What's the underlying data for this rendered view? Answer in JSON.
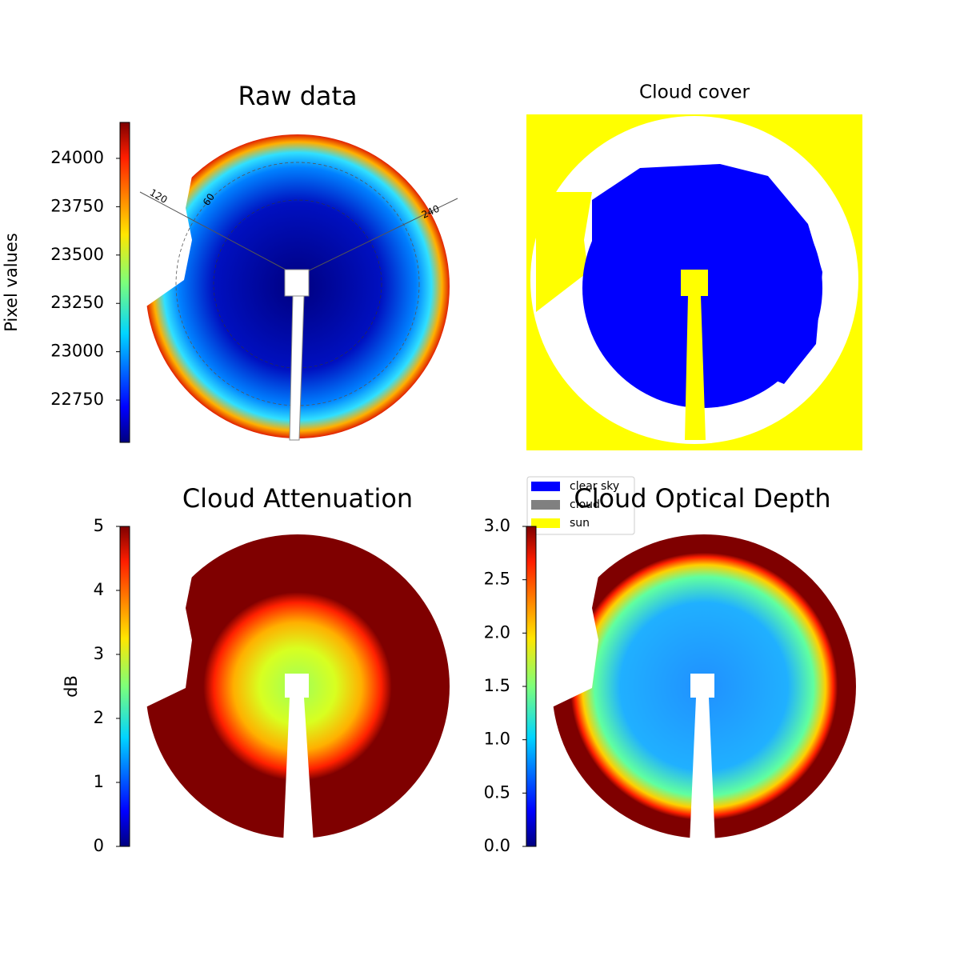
{
  "chart_data": [
    {
      "type": "image",
      "title": "Raw data",
      "colorbar_label": "Pixel values",
      "clim": [
        22531,
        24186
      ],
      "cticks": [
        22750,
        23000,
        23250,
        23500,
        23750,
        24000
      ],
      "annotations": [
        "120",
        "60",
        "240"
      ]
    },
    {
      "type": "image",
      "title": "Cloud cover",
      "legend": [
        {
          "name": "clear sky",
          "color": "#0000ff"
        },
        {
          "name": "cloud",
          "color": "#808080"
        },
        {
          "name": "sun",
          "color": "#ffff00"
        }
      ]
    },
    {
      "type": "image",
      "title": "Cloud Attenuation",
      "colorbar_label": "dB",
      "clim": [
        0,
        5
      ],
      "cticks": [
        0,
        1,
        2,
        3,
        4,
        5
      ]
    },
    {
      "type": "image",
      "title": "Cloud Optical Depth",
      "clim": [
        0,
        3
      ],
      "cticks": [
        {
          "value": 0,
          "label": "0.0"
        },
        0.5,
        {
          "value": 1,
          "label": "1.0"
        },
        1.5,
        {
          "value": 2,
          "label": "2.0"
        },
        2.5,
        {
          "value": 3,
          "label": "3.0"
        }
      ]
    }
  ]
}
